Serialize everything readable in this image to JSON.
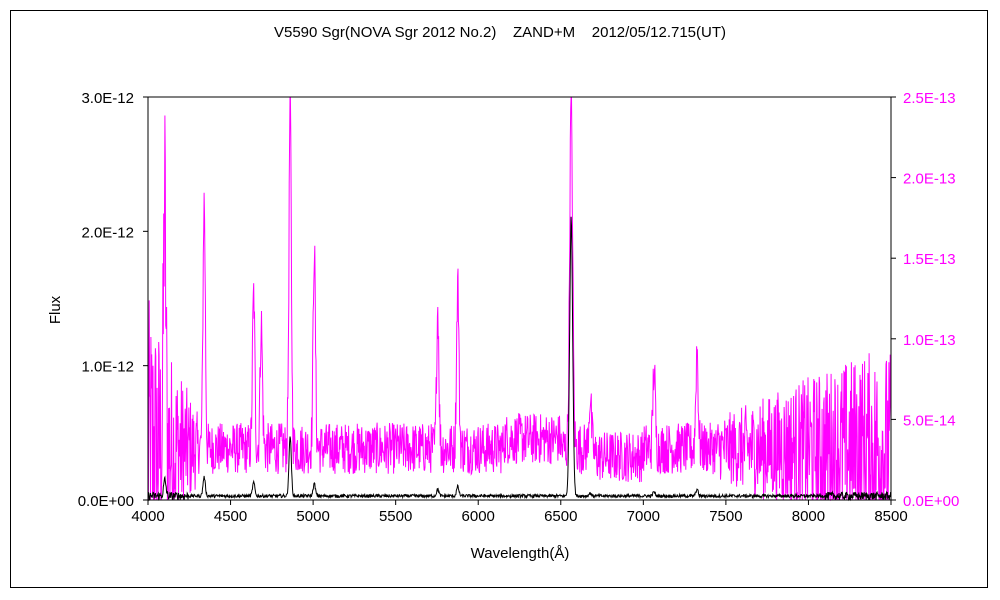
{
  "chart_data": {
    "type": "line",
    "title": "V5590 Sgr(NOVA Sgr 2012 No.2)    ZAND+M    2012/05/12.715(UT)",
    "xlabel": "Wavelength(Å)",
    "ylabel": "Flux",
    "xlim": [
      4000,
      8500
    ],
    "ylim_left": [
      0,
      3e-12
    ],
    "ylim_right": [
      0,
      2.5e-13
    ],
    "grid": false,
    "x_ticks": [
      4000,
      4500,
      5000,
      5500,
      6000,
      6500,
      7000,
      7500,
      8000,
      8500
    ],
    "y_left_ticks": [
      {
        "value": 0,
        "label": "0.0E+00"
      },
      {
        "value": 1e-12,
        "label": "1.0E-12"
      },
      {
        "value": 2e-12,
        "label": "2.0E-12"
      },
      {
        "value": 3e-12,
        "label": "3.0E-12"
      }
    ],
    "y_right_ticks": [
      {
        "value": 0,
        "label": "0.0E+00"
      },
      {
        "value": 5e-14,
        "label": "5.0E-14"
      },
      {
        "value": 1e-13,
        "label": "1.0E-13"
      },
      {
        "value": 1.5e-13,
        "label": "1.5E-13"
      },
      {
        "value": 2e-13,
        "label": "2.0E-13"
      },
      {
        "value": 2.5e-13,
        "label": "2.5E-13"
      }
    ],
    "series": [
      {
        "color": "#000000",
        "axis": "left",
        "continuum": 3e-14,
        "noise": 1.2e-14,
        "lines": [
          {
            "x": 4102,
            "y": 1.5e-13
          },
          {
            "x": 4340,
            "y": 1.7e-13
          },
          {
            "x": 4640,
            "y": 1.3e-13
          },
          {
            "x": 4861,
            "y": 4.8e-13
          },
          {
            "x": 5007,
            "y": 1.2e-13
          },
          {
            "x": 5755,
            "y": 8e-14
          },
          {
            "x": 5876,
            "y": 1e-13
          },
          {
            "x": 6563,
            "y": 2.1e-12
          },
          {
            "x": 6678,
            "y": 5e-14
          },
          {
            "x": 7065,
            "y": 6e-14
          },
          {
            "x": 7325,
            "y": 8e-14
          }
        ]
      },
      {
        "color": "#ff00ff",
        "axis": "right",
        "continuum": 3.2e-14,
        "lines": [
          {
            "x": 4101,
            "y": 1.9e-13
          },
          {
            "x": 4340,
            "y": 1.85e-13
          },
          {
            "x": 4640,
            "y": 1.28e-13
          },
          {
            "x": 4686,
            "y": 1.1e-13
          },
          {
            "x": 4861,
            "y": 2.5e-13
          },
          {
            "x": 5007,
            "y": 1.55e-13
          },
          {
            "x": 5755,
            "y": 1.2e-13
          },
          {
            "x": 5876,
            "y": 1.37e-13
          },
          {
            "x": 6563,
            "y": 2.5e-13
          },
          {
            "x": 6678,
            "y": 6.5e-14
          },
          {
            "x": 7065,
            "y": 8.2e-14
          },
          {
            "x": 7325,
            "y": 9.5e-14
          }
        ]
      }
    ]
  }
}
